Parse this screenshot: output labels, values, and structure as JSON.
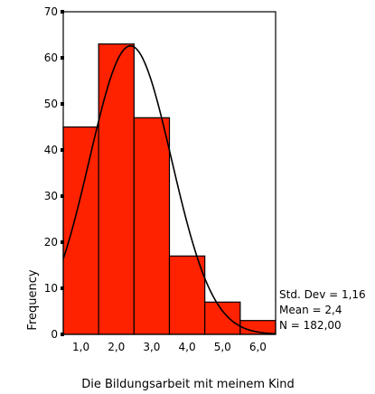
{
  "chart_data": {
    "type": "bar",
    "subtype": "histogram",
    "title": "",
    "xlabel": "Die Bildungsarbeit mit meinem Kind",
    "ylabel": "Frequency",
    "ylim": [
      0,
      70
    ],
    "xlim": [
      0.5,
      6.5
    ],
    "yticks": [
      0,
      10,
      20,
      30,
      40,
      50,
      60,
      70
    ],
    "ytick_labels": [
      "0",
      "10",
      "20",
      "30",
      "40",
      "50",
      "60",
      "70"
    ],
    "xticks": [
      1,
      2,
      3,
      4,
      5,
      6
    ],
    "xtick_labels": [
      "1,0",
      "2,0",
      "3,0",
      "4,0",
      "5,0",
      "6,0"
    ],
    "bins": [
      {
        "start": 0.5,
        "end": 1.5,
        "count": 45
      },
      {
        "start": 1.5,
        "end": 2.5,
        "count": 63
      },
      {
        "start": 2.5,
        "end": 3.5,
        "count": 47
      },
      {
        "start": 3.5,
        "end": 4.5,
        "count": 17
      },
      {
        "start": 4.5,
        "end": 5.5,
        "count": 7
      },
      {
        "start": 5.5,
        "end": 6.5,
        "count": 3
      }
    ],
    "bar_color": "#ff2200",
    "bar_edge_color": "#000000",
    "normal_curve": {
      "mean": 2.4,
      "std": 1.16,
      "n": 182
    },
    "grid": false,
    "stats": {
      "std_dev": "Std. Dev = 1,16",
      "mean": "Mean = 2,4",
      "n": "N = 182,00"
    }
  }
}
